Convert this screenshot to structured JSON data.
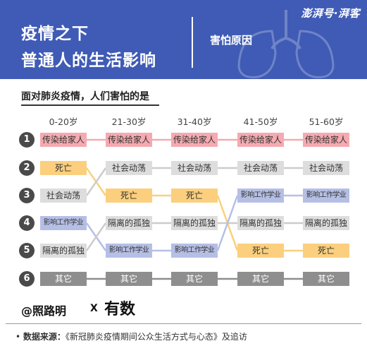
{
  "header": {
    "title_line1": "疫情之下",
    "title_line2": "普通人的生活影响",
    "subtitle": "害怕原因",
    "brand": "澎湃号·湃客"
  },
  "question": "面对肺炎疫情，人们害怕的是",
  "age_groups": [
    "0-20岁",
    "21-30岁",
    "31-40岁",
    "41-50岁",
    "51-60岁"
  ],
  "rank_numbers": [
    "1",
    "2",
    "3",
    "4",
    "5",
    "6"
  ],
  "grid": [
    [
      "传染给家人",
      "死亡",
      "社会动荡",
      "影响工作学业",
      "隔离的孤独",
      "其它"
    ],
    [
      "传染给家人",
      "社会动荡",
      "死亡",
      "隔离的孤独",
      "影响工作学业",
      "其它"
    ],
    [
      "传染给家人",
      "社会动荡",
      "死亡",
      "隔离的孤独",
      "影响工作学业",
      "其它"
    ],
    [
      "传染给家人",
      "社会动荡",
      "影响工作学业",
      "隔离的孤独",
      "死亡",
      "其它"
    ],
    [
      "传染给家人",
      "社会动荡",
      "影响工作学业",
      "隔离的孤独",
      "死亡",
      "其它"
    ]
  ],
  "categories": {
    "传染给家人": "#f4aab0",
    "死亡": "#fbcf7d",
    "社会动荡": "#dddddd",
    "影响工作学业": "#b5bfe5",
    "隔离的孤独": "#dddddd",
    "其它": "#8e8e8e"
  },
  "credit": {
    "author": "@照路明",
    "x": "X",
    "partner": "有数"
  },
  "source": {
    "label": "数据来源：",
    "text": "《新冠肺炎疫情期间公众生活方式与心态》及追访"
  }
}
